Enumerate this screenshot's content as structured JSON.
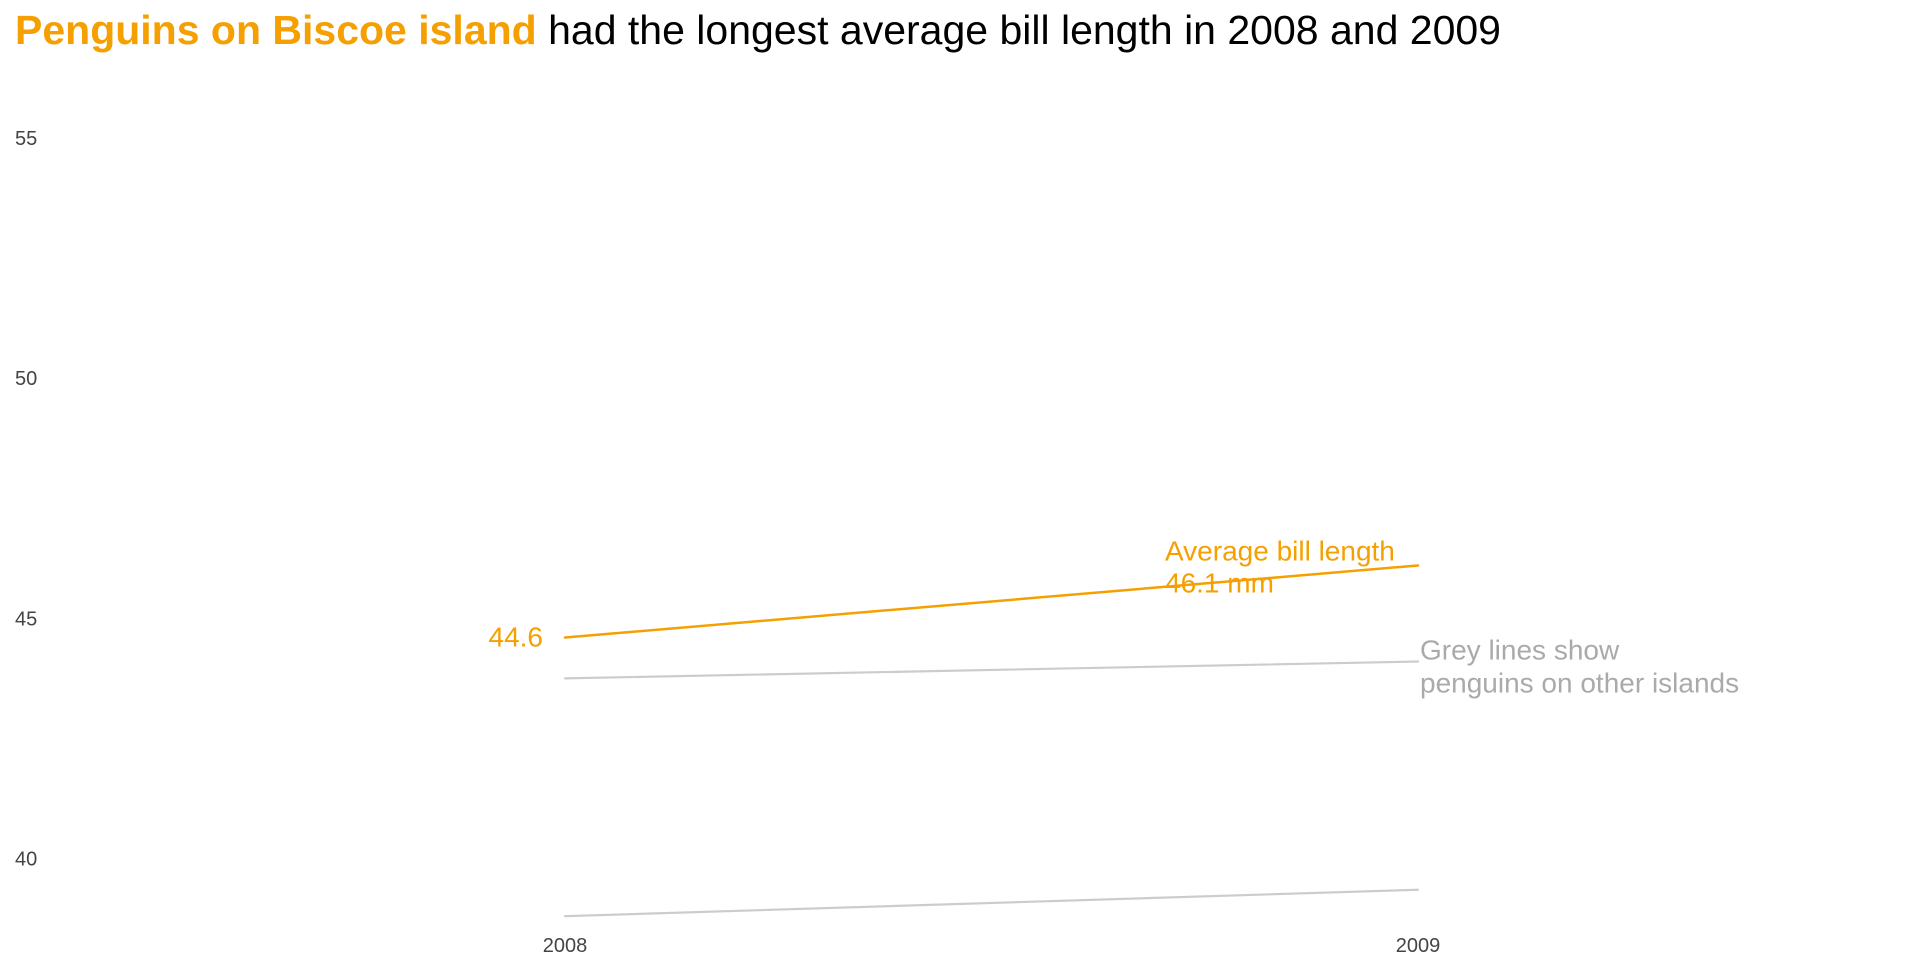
{
  "colors": {
    "highlight": "#f5a000",
    "grey_line": "#cccccc",
    "grey_text": "#aaaaaa",
    "tick_text": "#444444",
    "title_text": "#000000"
  },
  "title": {
    "highlight": "Penguins on Biscoe island",
    "rest": " had the longest average bill length in 2008 and 2009"
  },
  "chart_data": {
    "type": "line",
    "title": "Penguins on Biscoe island had the longest average bill length in 2008 and 2009",
    "xlabel": "",
    "ylabel": "",
    "x": [
      "2008",
      "2009"
    ],
    "ylim": [
      38.2,
      56.1
    ],
    "yticks": [
      40,
      45,
      50,
      55
    ],
    "grid": false,
    "series": [
      {
        "name": "Biscoe",
        "values": [
          44.6,
          46.1
        ],
        "highlight": true
      },
      {
        "values": [
          43.75,
          44.1
        ],
        "highlight": false
      },
      {
        "values": [
          38.8,
          39.35
        ],
        "highlight": false
      }
    ],
    "annotations": {
      "start_value_label": "44.6",
      "end_label_line1": "Average bill length",
      "end_label_line2": "46.1 mm",
      "grey_note_line1": "Grey lines show",
      "grey_note_line2": "penguins on other islands"
    }
  }
}
